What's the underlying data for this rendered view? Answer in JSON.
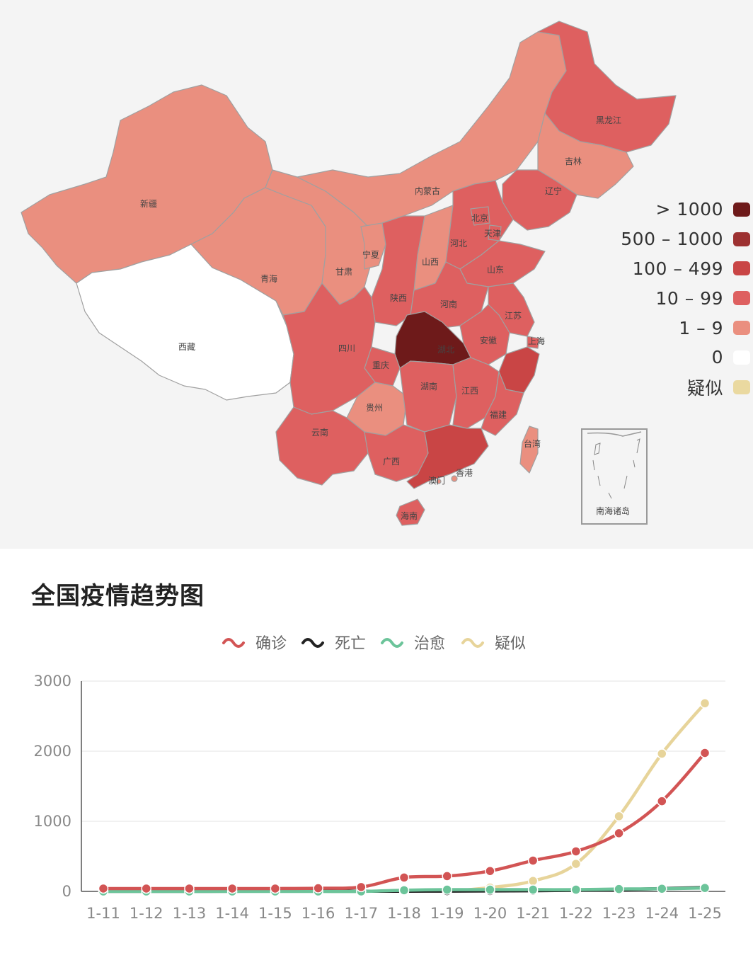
{
  "map": {
    "provinces": [
      {
        "id": "xinjiang",
        "label": "新疆",
        "bin": "1 – 9"
      },
      {
        "id": "xizang",
        "label": "西藏",
        "bin": "0"
      },
      {
        "id": "qinghai",
        "label": "青海",
        "bin": "1 – 9"
      },
      {
        "id": "gansu",
        "label": "甘肃",
        "bin": "1 – 9"
      },
      {
        "id": "neimenggu",
        "label": "内蒙古",
        "bin": "1 – 9"
      },
      {
        "id": "heilongjiang",
        "label": "黑龙江",
        "bin": "10 – 99"
      },
      {
        "id": "jilin",
        "label": "吉林",
        "bin": "1 – 9"
      },
      {
        "id": "liaoning",
        "label": "辽宁",
        "bin": "10 – 99"
      },
      {
        "id": "beijing",
        "label": "北京",
        "bin": "10 – 99"
      },
      {
        "id": "tianjin",
        "label": "天津",
        "bin": "10 – 99"
      },
      {
        "id": "hebei",
        "label": "河北",
        "bin": "10 – 99"
      },
      {
        "id": "shanxi",
        "label": "山西",
        "bin": "1 – 9"
      },
      {
        "id": "ningxia",
        "label": "宁夏",
        "bin": "1 – 9"
      },
      {
        "id": "shaanxi",
        "label": "陕西",
        "bin": "10 – 99"
      },
      {
        "id": "shandong",
        "label": "山东",
        "bin": "10 – 99"
      },
      {
        "id": "henan",
        "label": "河南",
        "bin": "10 – 99"
      },
      {
        "id": "jiangsu",
        "label": "江苏",
        "bin": "10 – 99"
      },
      {
        "id": "anhui",
        "label": "安徽",
        "bin": "10 – 99"
      },
      {
        "id": "shanghai",
        "label": "上海",
        "bin": "10 – 99"
      },
      {
        "id": "zhejiang",
        "label": "",
        "bin": "100 – 499"
      },
      {
        "id": "hubei",
        "label": "湖北",
        "bin": "> 1000"
      },
      {
        "id": "sichuan",
        "label": "四川",
        "bin": "10 – 99"
      },
      {
        "id": "chongqing",
        "label": "重庆",
        "bin": "10 – 99"
      },
      {
        "id": "hunan",
        "label": "湖南",
        "bin": "10 – 99"
      },
      {
        "id": "jiangxi",
        "label": "江西",
        "bin": "10 – 99"
      },
      {
        "id": "guizhou",
        "label": "贵州",
        "bin": "1 – 9"
      },
      {
        "id": "yunnan",
        "label": "云南",
        "bin": "10 – 99"
      },
      {
        "id": "guangxi",
        "label": "广西",
        "bin": "10 – 99"
      },
      {
        "id": "guangdong",
        "label": "",
        "bin": "100 – 499"
      },
      {
        "id": "fujian",
        "label": "福建",
        "bin": "10 – 99"
      },
      {
        "id": "taiwan",
        "label": "台湾",
        "bin": "1 – 9"
      },
      {
        "id": "hainan",
        "label": "海南",
        "bin": "10 – 99"
      },
      {
        "id": "hongkong",
        "label": "香港",
        "bin": "1 – 9"
      },
      {
        "id": "macau",
        "label": "澳门",
        "bin": "1 – 9"
      }
    ],
    "inset_label": "南海诸岛"
  },
  "legend": [
    {
      "label": "> 1000",
      "color": "#6e1a1a"
    },
    {
      "label": "500 – 1000",
      "color": "#9d3131"
    },
    {
      "label": "100 – 499",
      "color": "#c94545"
    },
    {
      "label": "10 – 99",
      "color": "#de6060"
    },
    {
      "label": "1 – 9",
      "color": "#ea8f7f"
    },
    {
      "label": "0",
      "color": "#ffffff"
    },
    {
      "label": "疑似",
      "color": "#ead9a0"
    }
  ],
  "trend_title": "全国疫情趋势图",
  "chart_data": {
    "type": "line",
    "title": "全国疫情趋势图",
    "categories": [
      "1-11",
      "1-12",
      "1-13",
      "1-14",
      "1-15",
      "1-16",
      "1-17",
      "1-18",
      "1-19",
      "1-20",
      "1-21",
      "1-22",
      "1-23",
      "1-24",
      "1-25"
    ],
    "series": [
      {
        "name": "确诊",
        "color": "#d25454",
        "values": [
          41,
          41,
          41,
          41,
          41,
          45,
          62,
          198,
          218,
          291,
          440,
          571,
          830,
          1287,
          1975
        ]
      },
      {
        "name": "死亡",
        "color": "#222222",
        "values": [
          1,
          1,
          1,
          2,
          2,
          2,
          2,
          3,
          4,
          6,
          9,
          17,
          25,
          41,
          56
        ]
      },
      {
        "name": "治愈",
        "color": "#6cc49a",
        "values": [
          0,
          0,
          0,
          0,
          0,
          0,
          0,
          17,
          25,
          25,
          25,
          25,
          34,
          38,
          49
        ]
      },
      {
        "name": "疑似",
        "color": "#e7d49a",
        "values": [
          null,
          null,
          null,
          null,
          null,
          null,
          null,
          null,
          0,
          54,
          149,
          393,
          1072,
          1965,
          2684
        ]
      }
    ],
    "yticks": [
      "3000",
      "2000",
      "1000",
      "0"
    ],
    "ylim": [
      0,
      3000
    ],
    "grid": true,
    "legend_position": "top-center"
  }
}
